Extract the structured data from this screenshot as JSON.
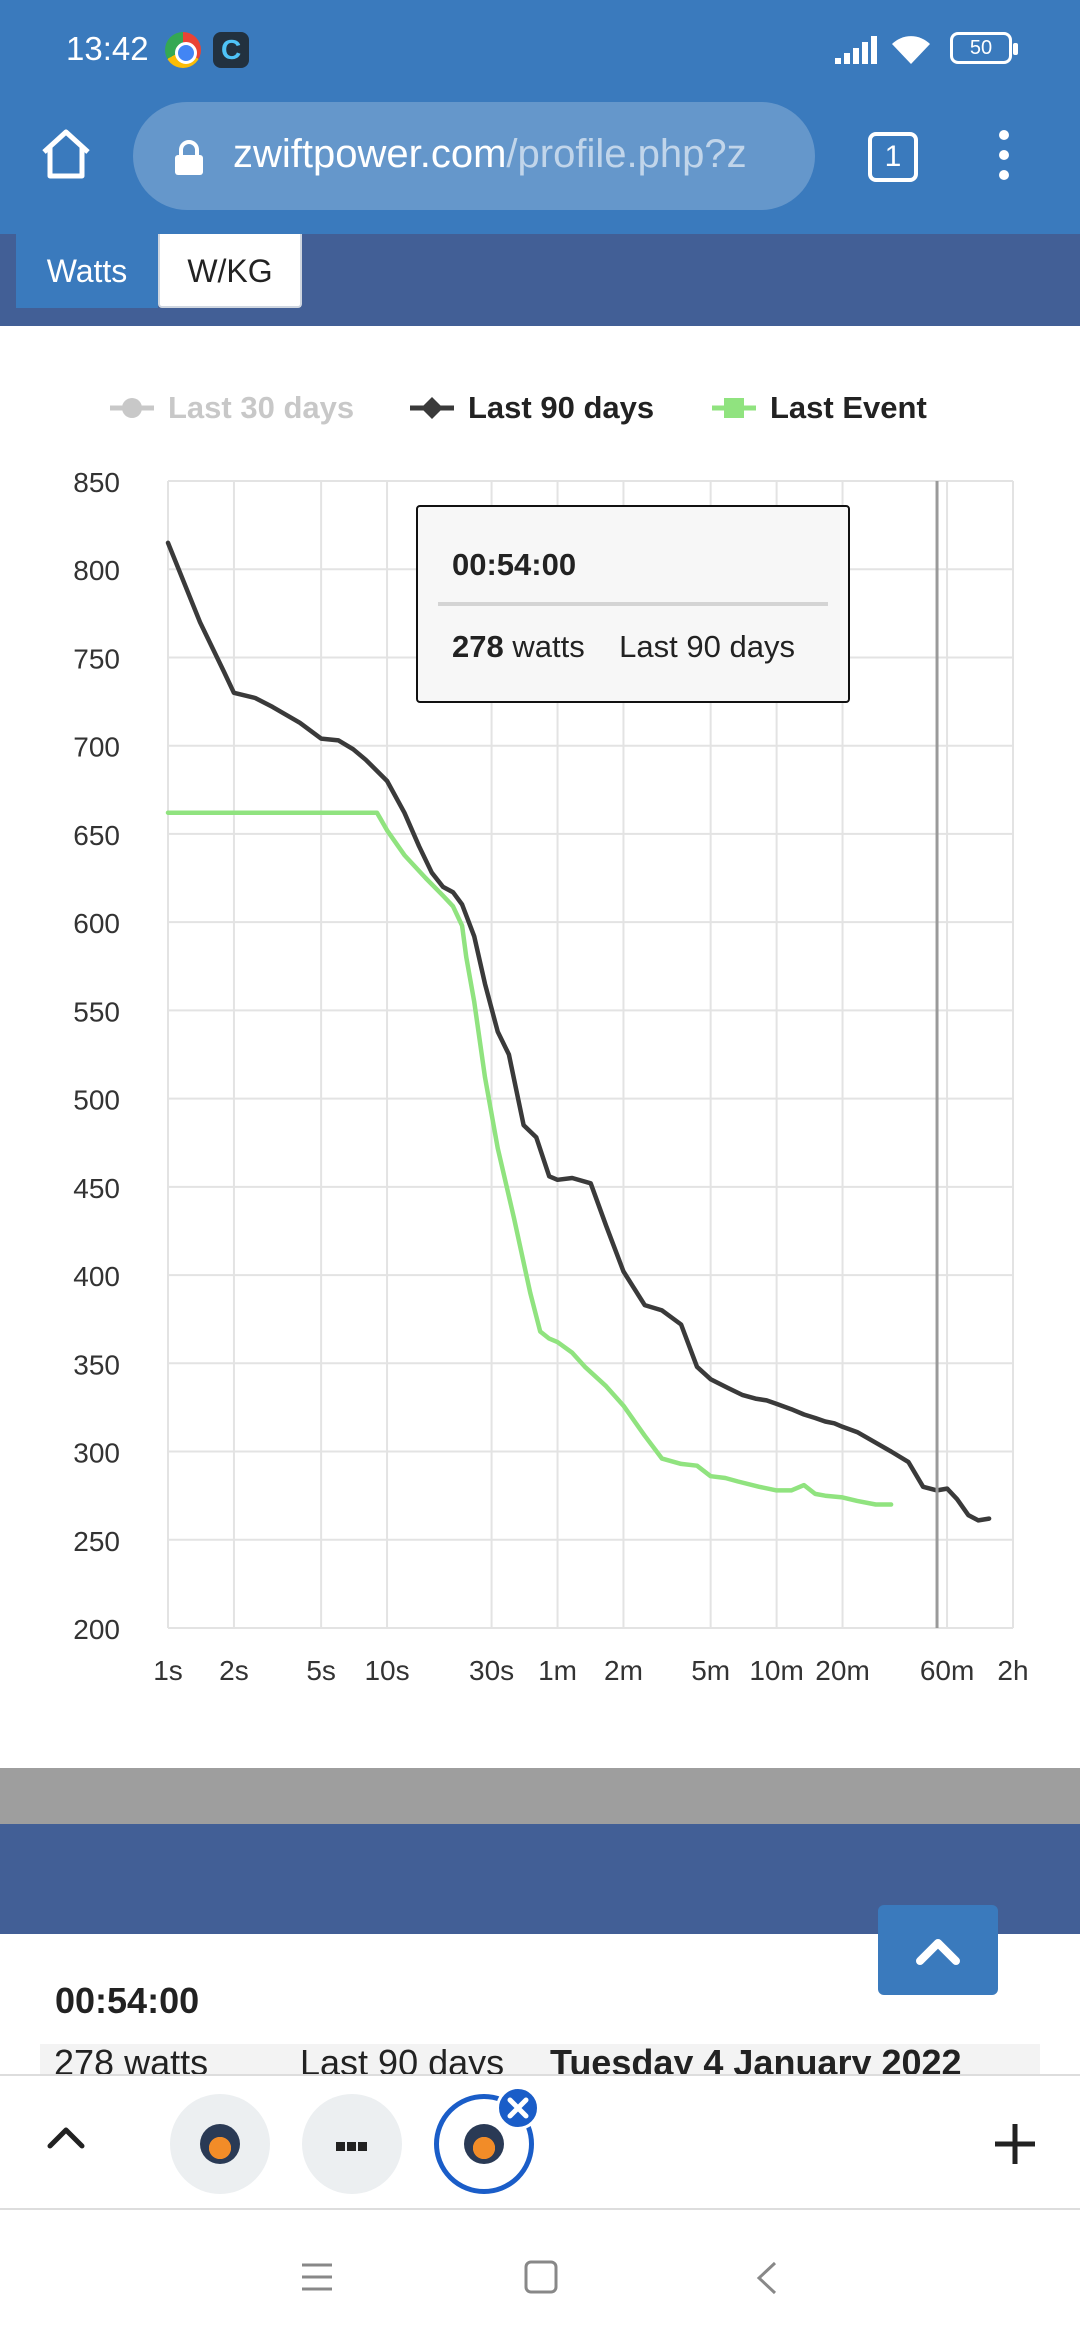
{
  "status_bar": {
    "time": "13:42",
    "battery": "50"
  },
  "browser": {
    "url_domain": "zwiftpower.com",
    "url_path": "/profile.php?z",
    "tab_count": "1"
  },
  "units_toggle": {
    "watts_label": "Watts",
    "wkg_label": "W/KG",
    "selected": "Watts"
  },
  "tooltip": {
    "time": "00:54:00",
    "value": "278",
    "unit": "watts",
    "series": "Last 90 days"
  },
  "lower_section": {
    "time": "00:54:00",
    "row_watts": "278 watts",
    "row_series": "Last 90 days",
    "row_date": "Tuesday 4 January 2022"
  },
  "colors": {
    "last30": "#c8c8c8",
    "last90": "#3a3a3a",
    "lastEvent": "#90e37f",
    "accent": "#3a7abd",
    "band": "#425f96"
  },
  "icons": [
    "home-icon",
    "lock-icon",
    "tabs-icon",
    "kebab-menu-icon",
    "chevron-up-icon",
    "close-icon",
    "plus-icon",
    "recent-apps-icon",
    "home-square-icon",
    "back-icon"
  ],
  "chart_data": {
    "type": "line",
    "title": "",
    "xlabel": "",
    "ylabel": "",
    "ylim": [
      200,
      850
    ],
    "yticks": [
      "200",
      "250",
      "300",
      "350",
      "400",
      "450",
      "500",
      "550",
      "600",
      "650",
      "700",
      "750",
      "800",
      "850"
    ],
    "x_scale": "log",
    "xticks": [
      {
        "label": "1s",
        "seconds": 1
      },
      {
        "label": "2s",
        "seconds": 2
      },
      {
        "label": "5s",
        "seconds": 5
      },
      {
        "label": "10s",
        "seconds": 10
      },
      {
        "label": "30s",
        "seconds": 30
      },
      {
        "label": "1m",
        "seconds": 60
      },
      {
        "label": "2m",
        "seconds": 120
      },
      {
        "label": "5m",
        "seconds": 300
      },
      {
        "label": "10m",
        "seconds": 600
      },
      {
        "label": "20m",
        "seconds": 1200
      },
      {
        "label": "60m",
        "seconds": 3600
      },
      {
        "label": "2h",
        "seconds": 7200
      }
    ],
    "grid": true,
    "legend": "top",
    "crosshair_seconds": 3240,
    "series": [
      {
        "name": "Last 30 days",
        "color": "#c8c8c8",
        "inactive": true,
        "x": [],
        "y": []
      },
      {
        "name": "Last 90 days",
        "color": "#3a3a3a",
        "x": [
          1,
          1.4,
          1.8,
          2,
          2.5,
          3,
          4,
          5,
          6,
          7,
          8,
          10,
          12,
          14,
          16,
          18,
          20,
          22,
          25,
          28,
          32,
          36,
          42,
          48,
          55,
          60,
          70,
          85,
          100,
          120,
          150,
          180,
          220,
          260,
          300,
          360,
          420,
          480,
          540,
          600,
          700,
          800,
          900,
          1000,
          1100,
          1200,
          1400,
          1700,
          2000,
          2400,
          2800,
          3240,
          3600,
          4000,
          4500,
          5000,
          5600
        ],
        "y": [
          815,
          770,
          742,
          730,
          727,
          722,
          713,
          704,
          703,
          698,
          692,
          680,
          662,
          643,
          628,
          620,
          617,
          610,
          592,
          565,
          538,
          525,
          485,
          478,
          456,
          454,
          455,
          452,
          428,
          402,
          383,
          380,
          372,
          348,
          341,
          336,
          332,
          330,
          329,
          327,
          324,
          321,
          319,
          317,
          316,
          314,
          311,
          305,
          300,
          294,
          280,
          278,
          279,
          273,
          264,
          261,
          262
        ]
      },
      {
        "name": "Last Event",
        "color": "#90e37f",
        "x": [
          1,
          2,
          5,
          8,
          9,
          10,
          12,
          15,
          18,
          20,
          22,
          23,
          25,
          28,
          32,
          38,
          45,
          50,
          55,
          60,
          70,
          80,
          100,
          120,
          150,
          180,
          220,
          260,
          300,
          350,
          400,
          500,
          600,
          700,
          800,
          900,
          1000,
          1200,
          1400,
          1700,
          2000
        ],
        "y": [
          662,
          662,
          662,
          662,
          662,
          652,
          638,
          625,
          615,
          609,
          598,
          580,
          555,
          512,
          472,
          432,
          390,
          368,
          364,
          362,
          356,
          348,
          337,
          326,
          309,
          296,
          293,
          292,
          286,
          285,
          283,
          280,
          278,
          278,
          281,
          276,
          275,
          274,
          272,
          270,
          270
        ]
      }
    ]
  }
}
